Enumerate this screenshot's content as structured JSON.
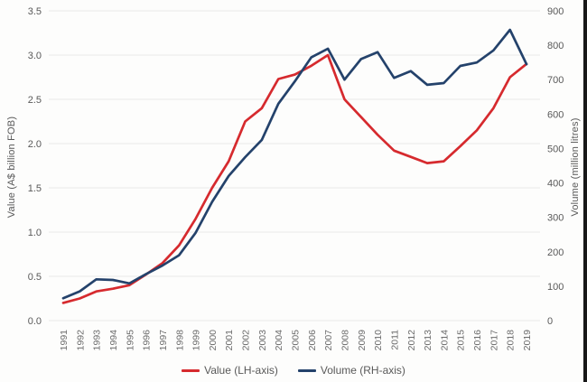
{
  "chart_data": {
    "type": "line",
    "x": [
      "1991",
      "1992",
      "1993",
      "1994",
      "1995",
      "1996",
      "1997",
      "1998",
      "1999",
      "2000",
      "2001",
      "2002",
      "2003",
      "2004",
      "2005",
      "2006",
      "2007",
      "2008",
      "2009",
      "2010",
      "2011",
      "2012",
      "2013",
      "2014",
      "2015",
      "2016",
      "2017",
      "2018",
      "2019"
    ],
    "series": [
      {
        "name": "Value (LH-axis)",
        "axis": "left",
        "color": "#d62a2e",
        "values": [
          0.2,
          0.25,
          0.33,
          0.36,
          0.4,
          0.52,
          0.65,
          0.85,
          1.15,
          1.5,
          1.8,
          2.25,
          2.4,
          2.73,
          2.78,
          2.88,
          3.0,
          2.5,
          2.3,
          2.1,
          1.92,
          1.85,
          1.78,
          1.8,
          1.97,
          2.15,
          2.4,
          2.75,
          2.9
        ]
      },
      {
        "name": "Volume (RH-axis)",
        "axis": "right",
        "color": "#24426b",
        "values": [
          65,
          85,
          120,
          118,
          108,
          135,
          160,
          190,
          255,
          345,
          420,
          475,
          525,
          630,
          695,
          765,
          790,
          700,
          760,
          780,
          705,
          725,
          685,
          690,
          740,
          750,
          785,
          845,
          745
        ]
      }
    ],
    "left_axis": {
      "label": "Value (A$ billion FOB)",
      "min": 0,
      "max": 3.5,
      "ticks": [
        "0.0",
        "0.5",
        "1.0",
        "1.5",
        "2.0",
        "2.5",
        "3.0",
        "3.5"
      ]
    },
    "right_axis": {
      "label": "Volume (million litres)",
      "min": 0,
      "max": 900,
      "ticks": [
        "0",
        "100",
        "200",
        "300",
        "400",
        "500",
        "600",
        "700",
        "800",
        "900"
      ]
    },
    "grid": "horizontal",
    "legend_position": "bottom"
  },
  "axes": {
    "left_title": "Value (A$ billion FOB)",
    "right_title": "Volume (million litres)"
  },
  "legend": {
    "value_label": "Value (LH-axis)",
    "volume_label": "Volume (RH-axis)"
  },
  "colors": {
    "value_line": "#d62a2e",
    "volume_line": "#24426b",
    "grid": "#e9e9e9",
    "tick_text": "#595959",
    "year_text": "#6b6b6b",
    "border_right": "#181818"
  }
}
